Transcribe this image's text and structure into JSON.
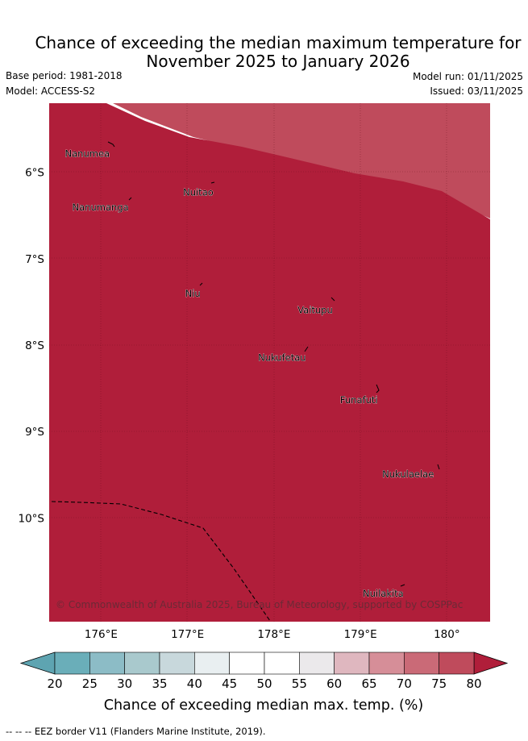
{
  "title": {
    "line1": "Chance of exceeding the median maximum temperature for",
    "line2": "November 2025 to January 2026"
  },
  "meta": {
    "base_period": "Base period: 1981-2018",
    "model": "Model: ACCESS-S2",
    "model_run": "Model run: 01/11/2025",
    "issued": "Issued: 03/11/2025"
  },
  "axes": {
    "y_ticks": [
      {
        "value": -6,
        "label": "6°S"
      },
      {
        "value": -7,
        "label": "7°S"
      },
      {
        "value": -8,
        "label": "8°S"
      },
      {
        "value": -9,
        "label": "9°S"
      },
      {
        "value": -10,
        "label": "10°S"
      }
    ],
    "x_ticks": [
      {
        "value": 176,
        "label": "176°E"
      },
      {
        "value": 177,
        "label": "177°E"
      },
      {
        "value": 178,
        "label": "178°E"
      },
      {
        "value": 179,
        "label": "179°E"
      },
      {
        "value": 180,
        "label": "180°"
      }
    ],
    "lon_range": [
      175.4,
      180.5
    ],
    "lat_range": [
      -11.2,
      -5.2
    ]
  },
  "places": [
    {
      "name": "Nanumea",
      "lon": 176.1,
      "lat": -5.67
    },
    {
      "name": "Nuitao",
      "lon": 177.3,
      "lat": -6.12
    },
    {
      "name": "Nanumanga",
      "lon": 176.32,
      "lat": -6.29
    },
    {
      "name": "Niu",
      "lon": 177.15,
      "lat": -7.29
    },
    {
      "name": "Vaitupu",
      "lon": 178.68,
      "lat": -7.48
    },
    {
      "name": "Nukufetau",
      "lon": 178.37,
      "lat": -8.03
    },
    {
      "name": "Funafuti",
      "lon": 179.2,
      "lat": -8.52
    },
    {
      "name": "Nukulaelae",
      "lon": 179.85,
      "lat": -9.38
    },
    {
      "name": "Nuilakita",
      "lon": 179.5,
      "lat": -10.76
    }
  ],
  "credit": "© Commonwealth of Australia 2025, Bureau of Meteorology, supported by COSPPac",
  "colorbar": {
    "title": "Chance of exceeding median max. temp. (%)",
    "tick_labels": [
      "20",
      "25",
      "30",
      "35",
      "40",
      "45",
      "50",
      "55",
      "60",
      "65",
      "70",
      "75",
      "80"
    ],
    "colors": [
      "#6aaeb9",
      "#8cbcc6",
      "#a9c9cd",
      "#c8d8dc",
      "#e9eff1",
      "#ffffff",
      "#ffffff",
      "#ebe9eb",
      "#dfb7bf",
      "#d68e98",
      "#ca6a77",
      "#bf4b5c",
      "#b01e3a"
    ],
    "low_color": "#5ea4b1",
    "high_color": "#b01e3a"
  },
  "footer": "-- -- -- EEZ border V11 (Flanders Marine Institute, 2019)."
}
